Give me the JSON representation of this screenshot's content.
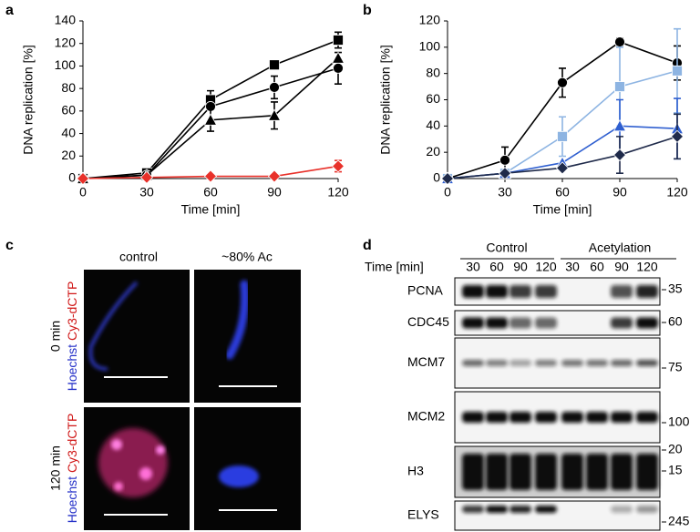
{
  "chart_data": [
    {
      "type": "line",
      "panel_label": "a",
      "ylabel": "DNA replication [%]",
      "xlabel": "Time [min]",
      "x": [
        0,
        30,
        60,
        90,
        120
      ],
      "xlim": [
        0,
        120
      ],
      "xticks": [
        0,
        30,
        60,
        90,
        120
      ],
      "ylim": [
        0,
        140
      ],
      "yticks": [
        0,
        20,
        40,
        60,
        80,
        100,
        120,
        140
      ],
      "series": [
        {
          "color": "#000000",
          "marker": "square",
          "values": [
            0,
            5,
            70,
            101,
            123
          ],
          "errors": [
            null,
            null,
            8,
            null,
            7
          ]
        },
        {
          "color": "#000000",
          "marker": "circle",
          "values": [
            0,
            3,
            64,
            81,
            98
          ],
          "errors": [
            null,
            null,
            null,
            10,
            14
          ]
        },
        {
          "color": "#000000",
          "marker": "triangle",
          "values": [
            0,
            3,
            52,
            56,
            107
          ],
          "errors": [
            null,
            null,
            10,
            12,
            null
          ]
        },
        {
          "color": "#e8312a",
          "marker": "diamond",
          "values": [
            0,
            1,
            2,
            2,
            11
          ],
          "errors": [
            null,
            null,
            null,
            null,
            5
          ]
        }
      ]
    },
    {
      "type": "line",
      "panel_label": "b",
      "ylabel": "DNA replication [%]",
      "xlabel": "Time [min]",
      "x": [
        0,
        30,
        60,
        90,
        120
      ],
      "xlim": [
        0,
        120
      ],
      "xticks": [
        0,
        30,
        60,
        90,
        120
      ],
      "ylim": [
        0,
        120
      ],
      "yticks": [
        0,
        20,
        40,
        60,
        80,
        100,
        120
      ],
      "series": [
        {
          "color": "#000000",
          "marker": "circle",
          "values": [
            0,
            14,
            73,
            104,
            88
          ],
          "errors": [
            null,
            10,
            11,
            3,
            13
          ]
        },
        {
          "color": "#8db4e2",
          "marker": "square",
          "values": [
            0,
            4,
            32,
            70,
            82
          ],
          "errors": [
            null,
            null,
            15,
            30,
            32
          ]
        },
        {
          "color": "#2f5fd0",
          "marker": "triangle",
          "values": [
            0,
            4,
            12,
            40,
            38
          ],
          "errors": [
            null,
            null,
            null,
            20,
            23
          ]
        },
        {
          "color": "#1f2a4a",
          "marker": "diamond",
          "values": [
            0,
            4,
            8,
            18,
            32
          ],
          "errors": [
            null,
            null,
            null,
            14,
            17
          ]
        }
      ]
    }
  ],
  "panel_c": {
    "panel_label": "c",
    "columns": [
      "control",
      "~80% Ac"
    ],
    "rows": [
      "0 min",
      "120 min"
    ],
    "stain_blue": "Hoechst",
    "stain_red": "Cy3-dCTP"
  },
  "panel_d": {
    "panel_label": "d",
    "groups": [
      "Control",
      "Acetylation"
    ],
    "time_label": "Time [min]",
    "lanes": [
      "30",
      "60",
      "90",
      "120",
      "30",
      "60",
      "90",
      "120"
    ],
    "proteins": [
      "PCNA",
      "CDC45",
      "MCM7",
      "MCM2",
      "H3",
      "ELYS"
    ],
    "markers": [
      "35",
      "60",
      "75",
      "100",
      "20",
      "15",
      "245"
    ]
  }
}
